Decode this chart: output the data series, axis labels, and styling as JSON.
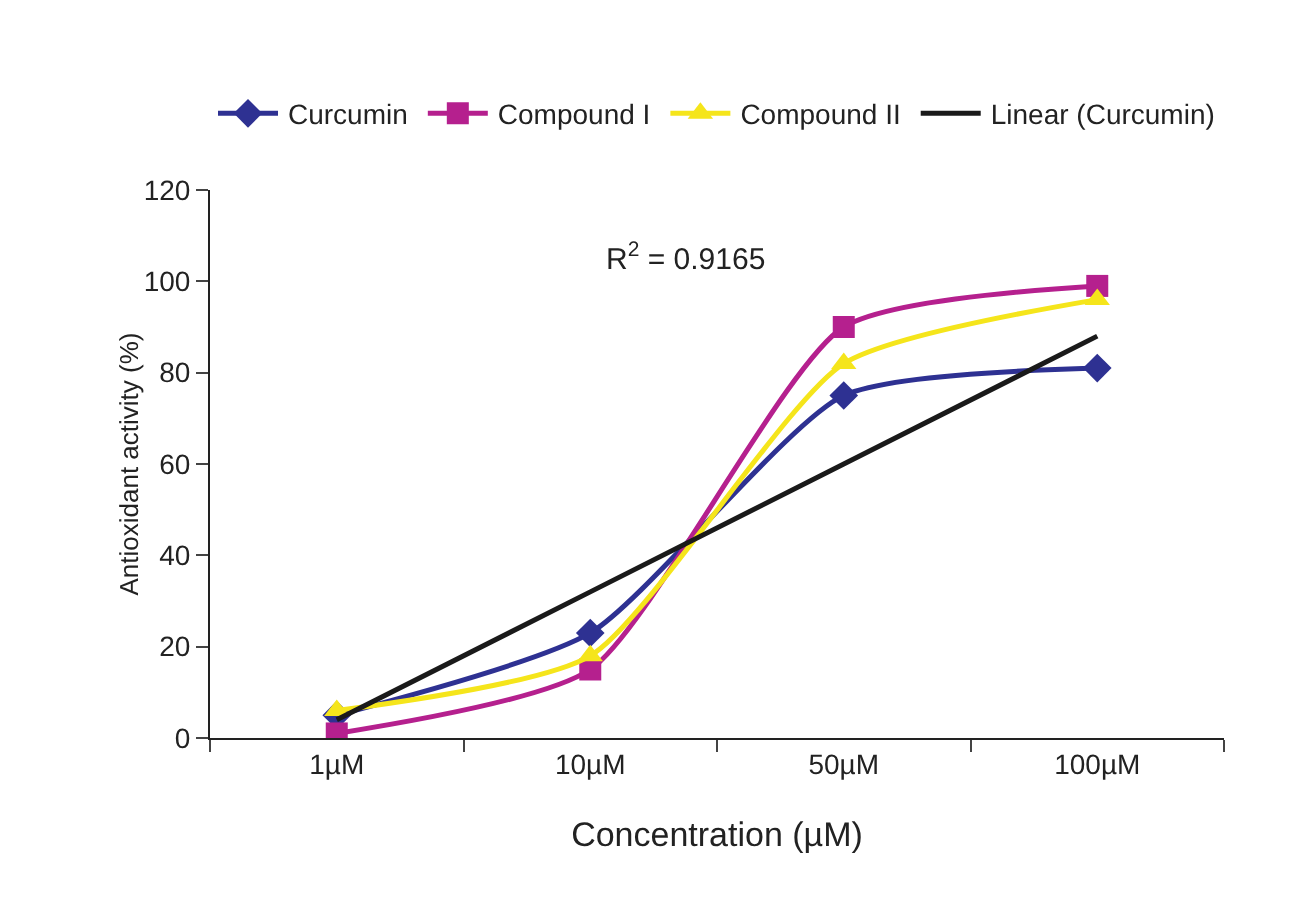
{
  "chart_data": {
    "type": "line",
    "xlabel": "Concentration (µM)",
    "ylabel": "Antioxidant activity (%)",
    "categories": [
      "1µM",
      "10µM",
      "50µM",
      "100µM"
    ],
    "ylim": [
      0,
      120
    ],
    "yticks": [
      0,
      20,
      40,
      60,
      80,
      100,
      120
    ],
    "grid": false,
    "legend": "top",
    "annotations": [
      "R$^{2}$ = 0.9165"
    ],
    "series": [
      {
        "name": "Curcumin",
        "color": "#2e3192",
        "marker": "diamond",
        "values": [
          5,
          23,
          75,
          81
        ]
      },
      {
        "name": "Compound I",
        "color": "#b5208e",
        "marker": "square",
        "values": [
          1,
          15,
          90,
          99
        ]
      },
      {
        "name": "Compound II",
        "color": "#f5e51b",
        "marker": "triangle",
        "values": [
          6,
          18,
          82,
          96
        ]
      },
      {
        "name": "Linear (Curcumin)",
        "color": "#1a1a1a",
        "marker": "none",
        "values": [
          4,
          32,
          60,
          88
        ]
      }
    ]
  }
}
